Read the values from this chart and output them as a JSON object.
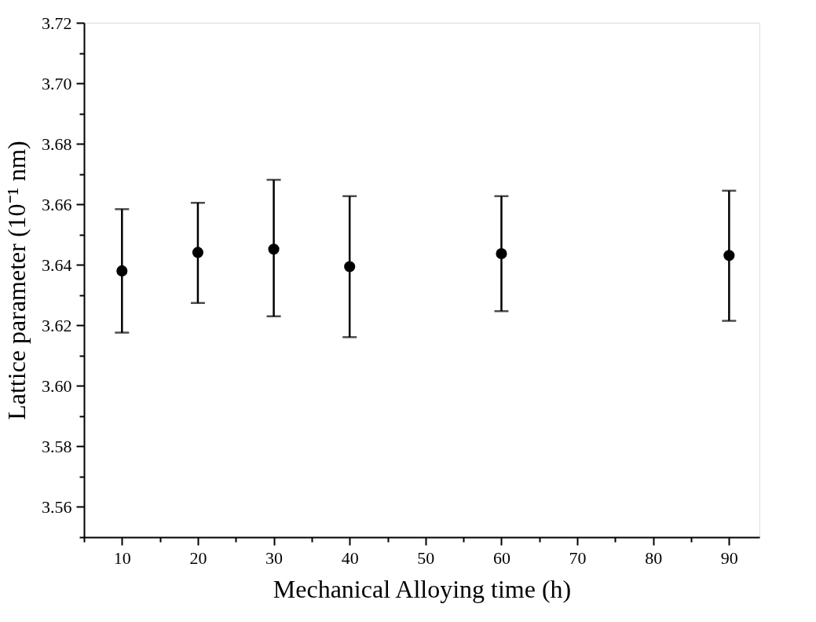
{
  "chart_data": {
    "type": "scatter",
    "xlabel": "Mechanical Alloying time (h)",
    "ylabel": "Lattice parameter (10⁻¹ nm)",
    "x": [
      10,
      20,
      30,
      40,
      60,
      90
    ],
    "series": [
      {
        "color": "#000000",
        "values": [
          3.638,
          3.6441,
          3.6452,
          3.6394,
          3.6437,
          3.6431
        ],
        "errors": [
          [
            3.6176,
            3.6584
          ],
          [
            3.6274,
            3.6605
          ],
          [
            3.623,
            3.6681
          ],
          [
            3.6161,
            3.6627
          ],
          [
            3.6247,
            3.6627
          ],
          [
            3.6215,
            3.6645
          ]
        ]
      }
    ],
    "xlim": [
      5,
      94
    ],
    "ylim": [
      3.55,
      3.72
    ],
    "xticks": [
      {
        "value": 5,
        "label": null
      },
      10,
      {
        "value": 15,
        "label": null
      },
      20,
      {
        "value": 25,
        "label": null
      },
      30,
      {
        "value": 35,
        "label": null
      },
      40,
      {
        "value": 45,
        "label": null
      },
      50,
      {
        "value": 55,
        "label": null
      },
      60,
      {
        "value": 65,
        "label": null
      },
      70,
      {
        "value": 75,
        "label": null
      },
      80,
      {
        "value": 85,
        "label": null
      },
      90
    ],
    "yticks": [
      {
        "value": 3.55,
        "label": null
      },
      {
        "value": 3.56,
        "label": "3.56"
      },
      {
        "value": 3.57,
        "label": null
      },
      {
        "value": 3.58,
        "label": "3.58"
      },
      {
        "value": 3.59,
        "label": null
      },
      {
        "value": 3.6,
        "label": "3.60"
      },
      {
        "value": 3.61,
        "label": null
      },
      {
        "value": 3.62,
        "label": "3.62"
      },
      {
        "value": 3.63,
        "label": null
      },
      {
        "value": 3.64,
        "label": "3.64"
      },
      {
        "value": 3.65,
        "label": null
      },
      {
        "value": 3.66,
        "label": "3.66"
      },
      {
        "value": 3.67,
        "label": null
      },
      {
        "value": 3.68,
        "label": "3.68"
      },
      {
        "value": 3.69,
        "label": null
      },
      {
        "value": 3.7,
        "label": "3.70"
      },
      {
        "value": 3.71,
        "label": null
      },
      {
        "value": 3.72,
        "label": "3.72"
      }
    ],
    "marker": "circle",
    "grid": false
  }
}
